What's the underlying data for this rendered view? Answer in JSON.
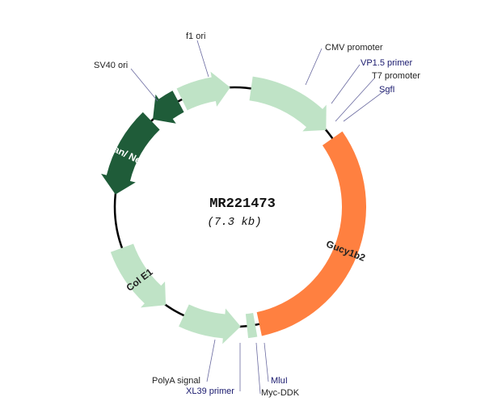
{
  "plasmid": {
    "name": "MR221473",
    "size": "(7.3 kb)"
  },
  "colors": {
    "backbone": "#000000",
    "light_feature": "#bfe3c6",
    "dark_feature": "#1f5c39",
    "insert": "#ff8040",
    "label_dark": "#222222",
    "label_blue": "#1a1a6e"
  },
  "features": {
    "f1_ori": "f1 ori",
    "sv40_ori": "SV40 ori",
    "kan_neo": "Kan/ Neo",
    "col_e1": "Col E1",
    "polya": "PolyA signal",
    "cmv": "CMV promoter",
    "insert": "Gucy1b2",
    "myc_ddk": "Myc-DDK"
  },
  "sites": {
    "vp15": "VP1.5 primer",
    "t7": "T7 promoter",
    "sgfi": "SgfI",
    "xl39": "XL39 primer",
    "mlui": "MluI"
  }
}
